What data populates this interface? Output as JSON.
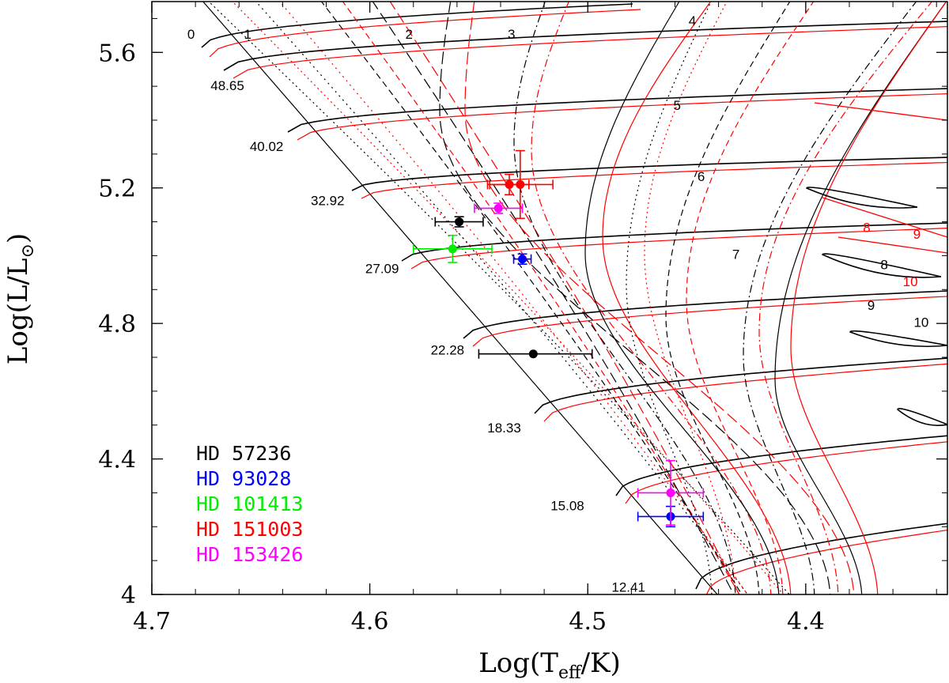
{
  "chart_data": {
    "type": "line",
    "title": "",
    "xlabel": "Log(T_eff/K)",
    "ylabel": "Log(L/L_⊙)",
    "xlim": [
      4.7,
      4.335
    ],
    "ylim": [
      4.0,
      5.75
    ],
    "x_ticks": [
      4.7,
      4.6,
      4.5,
      4.4
    ],
    "x_tick_labels": [
      "4.7",
      "4.6",
      "4.5",
      "4.4"
    ],
    "y_ticks": [
      4.0,
      4.4,
      4.8,
      5.2,
      5.6
    ],
    "y_tick_labels": [
      "4",
      "4.4",
      "4.8",
      "5.2",
      "5.6"
    ],
    "zams_masses": [
      {
        "label": "48.65",
        "x": 4.654,
        "y": 5.54
      },
      {
        "label": "40.02",
        "x": 4.636,
        "y": 5.36
      },
      {
        "label": "32.92",
        "x": 4.608,
        "y": 5.2
      },
      {
        "label": "27.09",
        "x": 4.583,
        "y": 5.0
      },
      {
        "label": "22.28",
        "x": 4.553,
        "y": 4.76
      },
      {
        "label": "18.33",
        "x": 4.527,
        "y": 4.53
      },
      {
        "label": "15.08",
        "x": 4.498,
        "y": 4.3
      },
      {
        "label": "12.41",
        "x": 4.47,
        "y": 4.06
      }
    ],
    "isochrones_black": [
      {
        "label": "0",
        "x": 4.682,
        "y": 5.64
      },
      {
        "label": "1",
        "x": 4.656,
        "y": 5.64
      },
      {
        "label": "2",
        "x": 4.582,
        "y": 5.64
      },
      {
        "label": "3",
        "x": 4.535,
        "y": 5.64
      },
      {
        "label": "4",
        "x": 4.452,
        "y": 5.68
      },
      {
        "label": "5",
        "x": 4.459,
        "y": 5.43
      },
      {
        "label": "6",
        "x": 4.448,
        "y": 5.22
      },
      {
        "label": "7",
        "x": 4.432,
        "y": 4.99
      },
      {
        "label": "8",
        "x": 4.364,
        "y": 4.96
      },
      {
        "label": "9",
        "x": 4.37,
        "y": 4.84
      },
      {
        "label": "10",
        "x": 4.347,
        "y": 4.79
      }
    ],
    "isochrones_red": [
      {
        "label": "8",
        "x": 4.372,
        "y": 5.07
      },
      {
        "label": "9",
        "x": 4.349,
        "y": 5.05
      },
      {
        "label": "10",
        "x": 4.352,
        "y": 4.91
      }
    ],
    "series": [
      {
        "name": "HD 57236",
        "color": "#000000",
        "points": [
          {
            "x": 4.559,
            "y": 5.1,
            "xerr": 0.011,
            "yerr": 0.015
          },
          {
            "x": 4.525,
            "y": 4.71,
            "xerr": [
              0.025,
              0.027
            ],
            "yerr": 0.0
          }
        ]
      },
      {
        "name": "HD 93028",
        "color": "#0000ff",
        "points": [
          {
            "x": 4.53,
            "y": 4.99,
            "xerr": 0.004,
            "yerr": 0.015
          },
          {
            "x": 4.462,
            "y": 4.23,
            "xerr": 0.015,
            "yerr": 0.03
          }
        ]
      },
      {
        "name": "HD 101413",
        "color": "#00ee00",
        "points": [
          {
            "x": 4.562,
            "y": 5.02,
            "xerr": 0.018,
            "yerr": 0.04
          }
        ]
      },
      {
        "name": "HD 151003",
        "color": "#ff0000",
        "points": [
          {
            "x": 4.536,
            "y": 5.21,
            "xerr": 0.009,
            "yerr": 0.03
          },
          {
            "x": 4.531,
            "y": 5.21,
            "xerr": 0.015,
            "yerr": 0.1
          }
        ]
      },
      {
        "name": "HD 153426",
        "color": "#ff00ff",
        "points": [
          {
            "x": 4.541,
            "y": 5.14,
            "xerr": 0.011,
            "yerr": 0.015
          },
          {
            "x": 4.462,
            "y": 4.3,
            "xerr": 0.015,
            "yerr": 0.095
          }
        ]
      }
    ],
    "legend": {
      "placement": "bottom-left",
      "entries": [
        {
          "label": "HD 57236",
          "color": "#000000"
        },
        {
          "label": "HD 93028",
          "color": "#0000ff"
        },
        {
          "label": "HD 101413",
          "color": "#00ee00"
        },
        {
          "label": "HD 151003",
          "color": "#ff0000"
        },
        {
          "label": "HD 153426",
          "color": "#ff00ff"
        }
      ]
    }
  }
}
